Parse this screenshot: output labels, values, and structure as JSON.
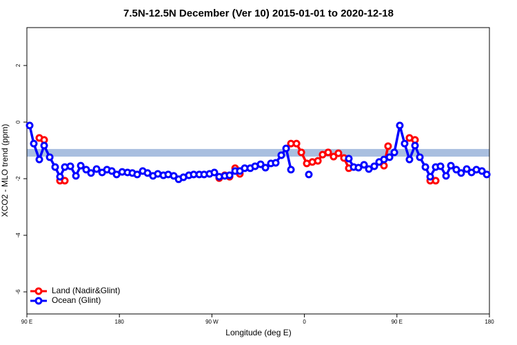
{
  "chart_data": {
    "type": "line",
    "title": "7.5N-12.5N December (Ver 10)   2015-01-01 to 2020-12-18",
    "x_label": "Longitude (deg E)",
    "y_label": "XCO2 - MLO trend (ppm)",
    "xlim": [
      90,
      540
    ],
    "ylim": [
      -6.78,
      3.34
    ],
    "xticks": [
      {
        "value": 90,
        "label": "90 E"
      },
      180,
      {
        "value": 270,
        "label": "90 W"
      },
      {
        "value": 360,
        "label": "0"
      },
      {
        "value": 450,
        "label": "90 E"
      },
      {
        "value": 540,
        "label": "180"
      }
    ],
    "yticks": [
      -6,
      -4,
      -2,
      0,
      2
    ],
    "band": {
      "ymin": -1.22,
      "ymax": -0.95,
      "color": "#a9bfdf"
    },
    "legend": "bottom-left",
    "series": [
      {
        "name": "Land (Nadir&Glint)",
        "color": "#ff0000",
        "x": [
          102.1,
          106.8,
          null,
          122.2,
          126.9,
          null,
          277.1,
          282.5,
          287.2,
          292.6,
          297.2,
          null,
          346.9,
          352.3,
          357.0,
          362.3,
          367.7,
          373.1,
          377.7,
          383.1,
          388.4,
          393.1,
          398.5,
          403.2,
          null,
          437.4,
          441.4,
          null,
          462.2,
          467.6,
          null,
          482.4,
          487.7
        ],
        "values": [
          -0.56,
          -0.63,
          null,
          -2.07,
          -2.07,
          null,
          -1.98,
          -1.88,
          -1.93,
          -1.63,
          -1.83,
          null,
          -0.76,
          -0.76,
          -1.07,
          -1.46,
          -1.41,
          -1.37,
          -1.15,
          -1.07,
          -1.22,
          -1.1,
          -1.27,
          -1.63,
          null,
          -1.54,
          -0.85,
          null,
          -0.56,
          -0.63,
          null,
          -2.07,
          -2.07
        ]
      },
      {
        "name": "Ocean (Glint)",
        "color": "#0000ff",
        "x": [
          92.7,
          96.7,
          102.1,
          106.8,
          112.2,
          117.5,
          122.2,
          126.9,
          132.3,
          137.7,
          142.4,
          147.7,
          152.4,
          157.8,
          163.2,
          167.9,
          172.6,
          177.3,
          182.7,
          187.9,
          192.6,
          197.3,
          202.7,
          207.4,
          212.7,
          217.4,
          222.8,
          227.5,
          232.9,
          237.6,
          242.3,
          247.6,
          252.3,
          257.7,
          262.4,
          267.7,
          272.4,
          277.1,
          282.5,
          287.2,
          292.6,
          297.2,
          301.9,
          307.3,
          312.0,
          317.4,
          322.1,
          327.4,
          332.1,
          337.5,
          342.2,
          346.9,
          null,
          364.3,
          null,
          403.2,
          407.9,
          412.6,
          418.0,
          422.7,
          428.0,
          432.7,
          437.4,
          442.8,
          447.5,
          452.8,
          457.5,
          462.2,
          467.6,
          472.3,
          477.7,
          482.4,
          487.7,
          492.4,
          497.8,
          502.5,
          507.8,
          512.5,
          517.9,
          522.6,
          527.3,
          532.7,
          537.4
        ],
        "values": [
          -0.12,
          -0.76,
          -1.32,
          -0.83,
          -1.24,
          -1.59,
          -1.93,
          -1.59,
          -1.56,
          -1.9,
          -1.54,
          -1.68,
          -1.8,
          -1.66,
          -1.78,
          -1.68,
          -1.73,
          -1.85,
          -1.76,
          -1.78,
          -1.8,
          -1.85,
          -1.73,
          -1.8,
          -1.9,
          -1.83,
          -1.88,
          -1.85,
          -1.9,
          -2.02,
          -1.95,
          -1.88,
          -1.85,
          -1.85,
          -1.85,
          -1.83,
          -1.78,
          -1.93,
          -1.9,
          -1.88,
          -1.73,
          -1.73,
          -1.63,
          -1.63,
          -1.56,
          -1.49,
          -1.61,
          -1.46,
          -1.44,
          -1.17,
          -0.93,
          -1.68,
          null,
          -1.85,
          null,
          -1.29,
          -1.59,
          -1.61,
          -1.51,
          -1.66,
          -1.56,
          -1.41,
          -1.32,
          -1.24,
          -1.07,
          -0.12,
          -0.76,
          -1.32,
          -0.83,
          -1.24,
          -1.59,
          -1.93,
          -1.59,
          -1.56,
          -1.9,
          -1.54,
          -1.68,
          -1.8,
          -1.66,
          -1.78,
          -1.68,
          -1.73,
          -1.85
        ]
      }
    ]
  }
}
